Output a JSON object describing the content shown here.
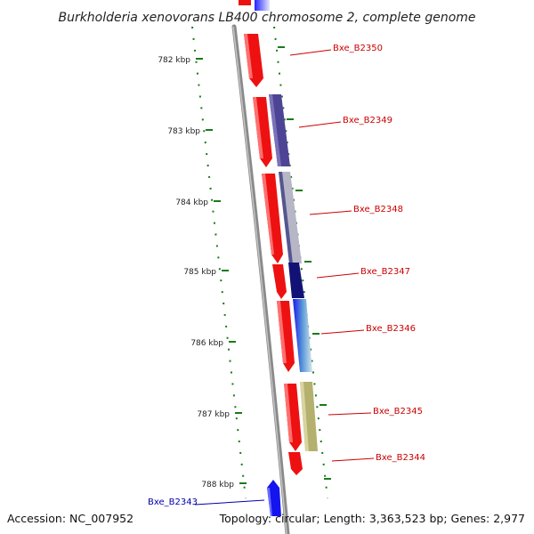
{
  "title": "Burkholderia xenovorans LB400 chromosome 2, complete genome",
  "accession_text": "Accession: NC_007952",
  "summary_text": "Topology: circular; Length: 3,363,523 bp; Genes: 2,977",
  "colors": {
    "backbone": "#8a8a8a",
    "tick": "#1a7a1a",
    "forward_gene": "#ee1111",
    "reverse_gene": "#1111ee",
    "label_right": "#cc0000",
    "label_left": "#0000aa"
  },
  "kbp_ticks": [
    "782 kbp",
    "783 kbp",
    "784 kbp",
    "785 kbp",
    "786 kbp",
    "787 kbp",
    "788 kbp"
  ],
  "gene_labels": [
    {
      "name": "Bxe_B2350",
      "side": "right"
    },
    {
      "name": "Bxe_B2349",
      "side": "right"
    },
    {
      "name": "Bxe_B2348",
      "side": "right"
    },
    {
      "name": "Bxe_B2347",
      "side": "right"
    },
    {
      "name": "Bxe_B2346",
      "side": "right"
    },
    {
      "name": "Bxe_B2345",
      "side": "right"
    },
    {
      "name": "Bxe_B2344",
      "side": "right"
    },
    {
      "name": "Bxe_B2343",
      "side": "left"
    }
  ]
}
